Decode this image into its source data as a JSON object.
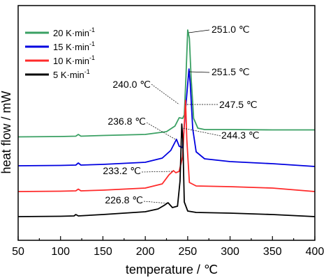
{
  "chart_data": {
    "type": "line",
    "xlabel": "temperature / ℃",
    "ylabel": "heat flow / mW",
    "xlim": [
      50,
      400
    ],
    "x_ticks": [
      50,
      100,
      150,
      200,
      250,
      300,
      350,
      400
    ],
    "y_ticks_shown": false,
    "grid": false,
    "legend_position": "top-left",
    "series": [
      {
        "name": "20 K·min",
        "superscript": "-1",
        "color": "#3aa063",
        "points": [
          [
            50,
            196.5
          ],
          [
            100,
            196
          ],
          [
            118,
            195.5
          ],
          [
            121,
            193
          ],
          [
            124,
            195.5
          ],
          [
            150,
            194.5
          ],
          [
            200,
            193
          ],
          [
            225,
            189
          ],
          [
            235,
            181
          ],
          [
            240,
            169
          ],
          [
            244,
            170
          ],
          [
            246,
            165
          ],
          [
            248,
            110
          ],
          [
            250,
            43
          ],
          [
            252,
            55
          ],
          [
            254,
            110
          ],
          [
            257,
            170
          ],
          [
            262,
            184
          ],
          [
            270,
            186
          ],
          [
            300,
            186
          ],
          [
            350,
            186.5
          ],
          [
            400,
            186.5
          ]
        ]
      },
      {
        "name": "15 K·min",
        "superscript": "-1",
        "color": "#0000e0",
        "points": [
          [
            50,
            238
          ],
          [
            100,
            237.5
          ],
          [
            118,
            237
          ],
          [
            121,
            234
          ],
          [
            124,
            237
          ],
          [
            150,
            236
          ],
          [
            200,
            233
          ],
          [
            220,
            227
          ],
          [
            230,
            216
          ],
          [
            236.8,
            200
          ],
          [
            240,
            210
          ],
          [
            244,
            212
          ],
          [
            248,
            150
          ],
          [
            251.5,
            99
          ],
          [
            253,
            120
          ],
          [
            256,
            185
          ],
          [
            260,
            218
          ],
          [
            270,
            228
          ],
          [
            300,
            232
          ],
          [
            350,
            235
          ],
          [
            400,
            239
          ]
        ]
      },
      {
        "name": "10 K·min",
        "superscript": "-1",
        "color": "#ff2a2a",
        "points": [
          [
            50,
            275
          ],
          [
            100,
            274.5
          ],
          [
            118,
            274
          ],
          [
            121,
            271.5
          ],
          [
            124,
            274
          ],
          [
            150,
            273
          ],
          [
            200,
            270
          ],
          [
            220,
            264
          ],
          [
            228,
            251
          ],
          [
            233.2,
            245
          ],
          [
            236,
            248
          ],
          [
            240,
            246
          ],
          [
            244,
            225
          ],
          [
            247.5,
            144
          ],
          [
            249,
            200
          ],
          [
            252,
            262
          ],
          [
            260,
            267
          ],
          [
            300,
            268
          ],
          [
            350,
            270
          ],
          [
            400,
            275
          ]
        ]
      },
      {
        "name": "5 K·min",
        "superscript": "-1",
        "color": "#000000",
        "points": [
          [
            50,
            311
          ],
          [
            100,
            310.5
          ],
          [
            116,
            310
          ],
          [
            118,
            308
          ],
          [
            121,
            310
          ],
          [
            150,
            308
          ],
          [
            200,
            304
          ],
          [
            215,
            300
          ],
          [
            222,
            295
          ],
          [
            226.8,
            291
          ],
          [
            232,
            298
          ],
          [
            238,
            296
          ],
          [
            241,
            260
          ],
          [
            243,
            178
          ],
          [
            244.3,
            200
          ],
          [
            246,
            290
          ],
          [
            250,
            303
          ],
          [
            260,
            305
          ],
          [
            300,
            306
          ],
          [
            350,
            308
          ],
          [
            400,
            311
          ]
        ]
      }
    ],
    "annotations": [
      {
        "text": "251.0 ℃",
        "x": 251.0
      },
      {
        "text": "251.5 ℃",
        "x": 251.5
      },
      {
        "text": "240.0 ℃",
        "x": 240.0
      },
      {
        "text": "247.5 ℃",
        "x": 247.5
      },
      {
        "text": "236.8 ℃",
        "x": 236.8
      },
      {
        "text": "244.3 ℃",
        "x": 244.3
      },
      {
        "text": "233.2 ℃",
        "x": 233.2
      },
      {
        "text": "226.8 ℃",
        "x": 226.8
      }
    ]
  }
}
